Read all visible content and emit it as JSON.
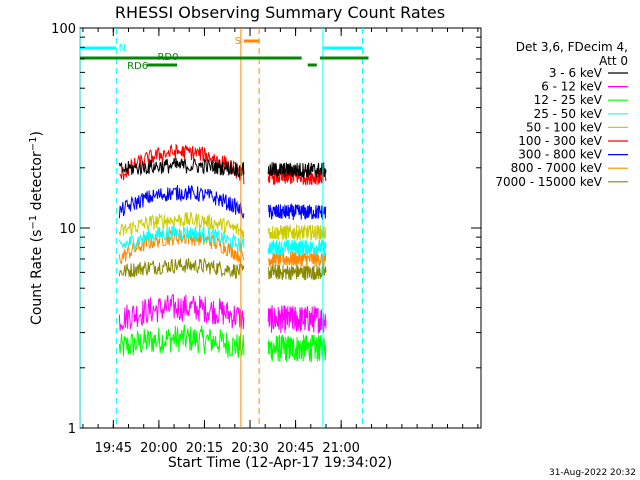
{
  "chart_data": {
    "type": "line",
    "title": "RHESSI Observing Summary Count Rates",
    "xlabel": "Start Time (12-Apr-17 19:34:02)",
    "ylabel": "Count Rate (s⁻¹ detector⁻¹)",
    "y_scale": "log",
    "ylim": [
      1,
      100
    ],
    "xlim_minutes": [
      "19:34:02",
      "21:46:00"
    ],
    "x_ticks": [
      "19:45",
      "20:00",
      "20:15",
      "20:30",
      "20:45",
      "21:00"
    ],
    "y_ticks": [
      "1",
      "10",
      "100"
    ],
    "legend_header": [
      "Det 3,6, FDecim 4,",
      "Att 0"
    ],
    "series": [
      {
        "name": "3 - 6 keV",
        "color": "#000000",
        "base": 19.5,
        "peak": 20.5
      },
      {
        "name": "6 - 12 keV",
        "color": "#ff00ff",
        "base": 3.5,
        "peak": 4.0
      },
      {
        "name": "12 - 25 keV",
        "color": "#00ff00",
        "base": 2.5,
        "peak": 2.8
      },
      {
        "name": "25 - 50 keV",
        "color": "#00ffff",
        "base": 8.0,
        "peak": 9.5
      },
      {
        "name": "50 - 100 keV",
        "color": "#cccc00",
        "base": 9.5,
        "peak": 11.0
      },
      {
        "name": "100 - 300 keV",
        "color": "#ff0000",
        "base": 18.0,
        "peak": 24.0
      },
      {
        "name": "300 - 800 keV",
        "color": "#0000ff",
        "base": 12.0,
        "peak": 15.0
      },
      {
        "name": "800 - 7000 keV",
        "color": "#ff8800",
        "base": 7.0,
        "peak": 9.0
      },
      {
        "name": "7000 - 15000 keV",
        "color": "#888800",
        "base": 6.0,
        "peak": 6.5
      }
    ],
    "flags": {
      "N": {
        "label": "N",
        "color": "#00ffff"
      },
      "S": {
        "label": "S",
        "color": "#ff8800"
      },
      "RD0": {
        "label": "RD0",
        "color": "#008800"
      },
      "RD6": {
        "label": "RD6",
        "color": "#008800"
      }
    },
    "grid": false
  },
  "footer": {
    "date": "31-Aug-2022 20:32"
  }
}
